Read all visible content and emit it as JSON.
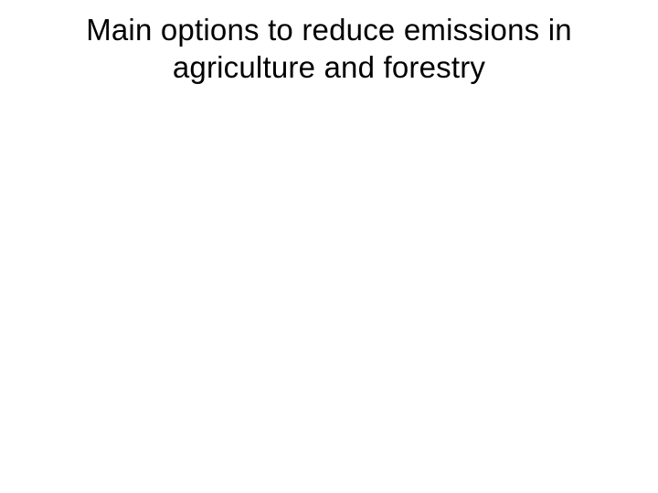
{
  "slide": {
    "title": "Main options to reduce emissions in agriculture and forestry",
    "title_fontsize": 33,
    "title_color": "#000000",
    "background_color": "#ffffff",
    "title_fontweight": 400,
    "title_align": "center",
    "title_lineheight": 1.25
  }
}
